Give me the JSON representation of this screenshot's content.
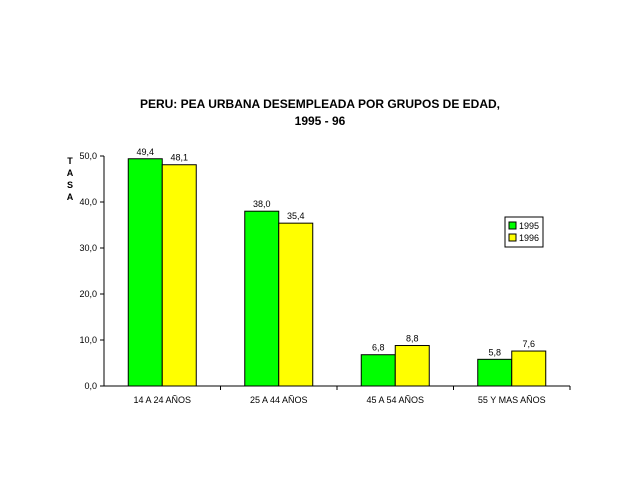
{
  "chart_data": {
    "type": "bar",
    "title_lines": [
      "PERU: PEA URBANA DESEMPLEADA POR GRUPOS DE EDAD,",
      "1995 - 96"
    ],
    "ylabel": "TASA",
    "xlabel": "",
    "ylim": [
      0,
      50
    ],
    "y_ticks": [
      "0,0",
      "10,0",
      "20,0",
      "30,0",
      "40,0",
      "50,0"
    ],
    "categories": [
      "14 A 24 AÑOS",
      "25 A 44 AÑOS",
      "45 A 54 AÑOS",
      "55 Y MAS AÑOS"
    ],
    "series": [
      {
        "name": "1995",
        "color": "#00ff00",
        "values": [
          49.4,
          38.0,
          6.8,
          5.8
        ],
        "labels": [
          "49,4",
          "38,0",
          "6,8",
          "5,8"
        ]
      },
      {
        "name": "1996",
        "color": "#ffff00",
        "values": [
          48.1,
          35.4,
          8.8,
          7.6
        ],
        "labels": [
          "48,1",
          "35,4",
          "8,8",
          "7,6"
        ]
      }
    ],
    "legend_position": "right",
    "grid": false
  }
}
